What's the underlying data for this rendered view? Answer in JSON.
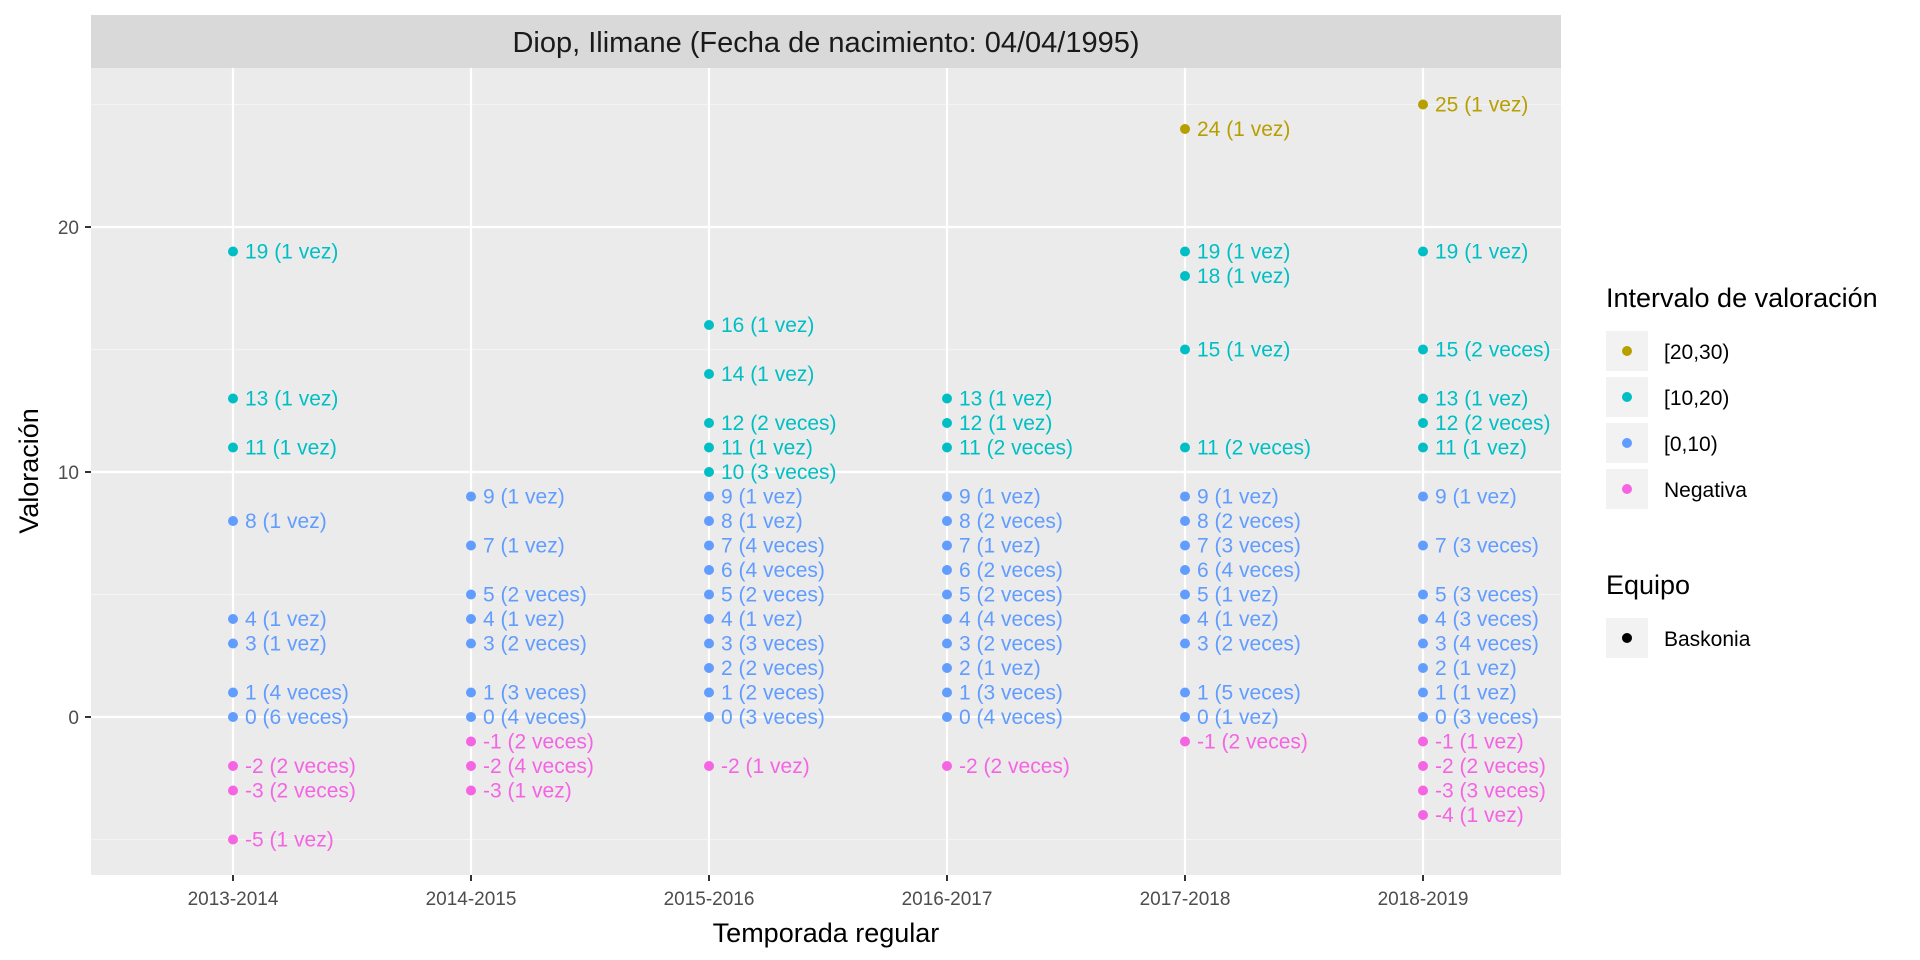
{
  "chart_data": {
    "type": "scatter",
    "title": "Diop, Ilimane (Fecha de nacimiento: 04/04/1995)",
    "xlabel": "Temporada regular",
    "ylabel": "Valoración",
    "categories": [
      "2013-2014",
      "2014-2015",
      "2015-2016",
      "2016-2017",
      "2017-2018",
      "2018-2019"
    ],
    "ylim": [
      -6.5,
      26.5
    ],
    "yticks": [
      0,
      10,
      20
    ],
    "grid": true,
    "legend_position": "right",
    "legend": {
      "color_title": "Intervalo de valoración",
      "color_entries": [
        {
          "key": "20_30",
          "label": "[20,30)",
          "color": "#B79F00"
        },
        {
          "key": "10_20",
          "label": "[10,20)",
          "color": "#00BFC4"
        },
        {
          "key": "0_10",
          "label": "[0,10)",
          "color": "#619CFF"
        },
        {
          "key": "neg",
          "label": "Negativa",
          "color": "#F564E3"
        }
      ],
      "shape_title": "Equipo",
      "shape_entries": [
        {
          "label": "Baskonia",
          "color": "#000000"
        }
      ]
    },
    "points": [
      {
        "season": "2013-2014",
        "y": 19,
        "group": "10_20",
        "label": "19 (1 vez)"
      },
      {
        "season": "2013-2014",
        "y": 13,
        "group": "10_20",
        "label": "13 (1 vez)"
      },
      {
        "season": "2013-2014",
        "y": 11,
        "group": "10_20",
        "label": "11 (1 vez)"
      },
      {
        "season": "2013-2014",
        "y": 8,
        "group": "0_10",
        "label": "8 (1 vez)"
      },
      {
        "season": "2013-2014",
        "y": 4,
        "group": "0_10",
        "label": "4 (1 vez)"
      },
      {
        "season": "2013-2014",
        "y": 3,
        "group": "0_10",
        "label": "3 (1 vez)"
      },
      {
        "season": "2013-2014",
        "y": 1,
        "group": "0_10",
        "label": "1 (4 veces)"
      },
      {
        "season": "2013-2014",
        "y": 0,
        "group": "0_10",
        "label": "0 (6 veces)"
      },
      {
        "season": "2013-2014",
        "y": -2,
        "group": "neg",
        "label": "-2 (2 veces)"
      },
      {
        "season": "2013-2014",
        "y": -3,
        "group": "neg",
        "label": "-3 (2 veces)"
      },
      {
        "season": "2013-2014",
        "y": -5,
        "group": "neg",
        "label": "-5 (1 vez)"
      },
      {
        "season": "2014-2015",
        "y": 9,
        "group": "0_10",
        "label": "9 (1 vez)"
      },
      {
        "season": "2014-2015",
        "y": 7,
        "group": "0_10",
        "label": "7 (1 vez)"
      },
      {
        "season": "2014-2015",
        "y": 5,
        "group": "0_10",
        "label": "5 (2 veces)"
      },
      {
        "season": "2014-2015",
        "y": 4,
        "group": "0_10",
        "label": "4 (1 vez)"
      },
      {
        "season": "2014-2015",
        "y": 3,
        "group": "0_10",
        "label": "3 (2 veces)"
      },
      {
        "season": "2014-2015",
        "y": 1,
        "group": "0_10",
        "label": "1 (3 veces)"
      },
      {
        "season": "2014-2015",
        "y": 0,
        "group": "0_10",
        "label": "0 (4 veces)"
      },
      {
        "season": "2014-2015",
        "y": -1,
        "group": "neg",
        "label": "-1 (2 veces)"
      },
      {
        "season": "2014-2015",
        "y": -2,
        "group": "neg",
        "label": "-2 (4 veces)"
      },
      {
        "season": "2014-2015",
        "y": -3,
        "group": "neg",
        "label": "-3 (1 vez)"
      },
      {
        "season": "2015-2016",
        "y": 16,
        "group": "10_20",
        "label": "16 (1 vez)"
      },
      {
        "season": "2015-2016",
        "y": 14,
        "group": "10_20",
        "label": "14 (1 vez)"
      },
      {
        "season": "2015-2016",
        "y": 12,
        "group": "10_20",
        "label": "12 (2 veces)"
      },
      {
        "season": "2015-2016",
        "y": 11,
        "group": "10_20",
        "label": "11 (1 vez)"
      },
      {
        "season": "2015-2016",
        "y": 10,
        "group": "10_20",
        "label": "10 (3 veces)"
      },
      {
        "season": "2015-2016",
        "y": 9,
        "group": "0_10",
        "label": "9 (1 vez)"
      },
      {
        "season": "2015-2016",
        "y": 8,
        "group": "0_10",
        "label": "8 (1 vez)"
      },
      {
        "season": "2015-2016",
        "y": 7,
        "group": "0_10",
        "label": "7 (4 veces)"
      },
      {
        "season": "2015-2016",
        "y": 6,
        "group": "0_10",
        "label": "6 (4 veces)"
      },
      {
        "season": "2015-2016",
        "y": 5,
        "group": "0_10",
        "label": "5 (2 veces)"
      },
      {
        "season": "2015-2016",
        "y": 4,
        "group": "0_10",
        "label": "4 (1 vez)"
      },
      {
        "season": "2015-2016",
        "y": 3,
        "group": "0_10",
        "label": "3 (3 veces)"
      },
      {
        "season": "2015-2016",
        "y": 2,
        "group": "0_10",
        "label": "2 (2 veces)"
      },
      {
        "season": "2015-2016",
        "y": 1,
        "group": "0_10",
        "label": "1 (2 veces)"
      },
      {
        "season": "2015-2016",
        "y": 0,
        "group": "0_10",
        "label": "0 (3 veces)"
      },
      {
        "season": "2015-2016",
        "y": -2,
        "group": "neg",
        "label": "-2 (1 vez)"
      },
      {
        "season": "2016-2017",
        "y": 13,
        "group": "10_20",
        "label": "13 (1 vez)"
      },
      {
        "season": "2016-2017",
        "y": 12,
        "group": "10_20",
        "label": "12 (1 vez)"
      },
      {
        "season": "2016-2017",
        "y": 11,
        "group": "10_20",
        "label": "11 (2 veces)"
      },
      {
        "season": "2016-2017",
        "y": 9,
        "group": "0_10",
        "label": "9 (1 vez)"
      },
      {
        "season": "2016-2017",
        "y": 8,
        "group": "0_10",
        "label": "8 (2 veces)"
      },
      {
        "season": "2016-2017",
        "y": 7,
        "group": "0_10",
        "label": "7 (1 vez)"
      },
      {
        "season": "2016-2017",
        "y": 6,
        "group": "0_10",
        "label": "6 (2 veces)"
      },
      {
        "season": "2016-2017",
        "y": 5,
        "group": "0_10",
        "label": "5 (2 veces)"
      },
      {
        "season": "2016-2017",
        "y": 4,
        "group": "0_10",
        "label": "4 (4 veces)"
      },
      {
        "season": "2016-2017",
        "y": 3,
        "group": "0_10",
        "label": "3 (2 veces)"
      },
      {
        "season": "2016-2017",
        "y": 2,
        "group": "0_10",
        "label": "2 (1 vez)"
      },
      {
        "season": "2016-2017",
        "y": 1,
        "group": "0_10",
        "label": "1 (3 veces)"
      },
      {
        "season": "2016-2017",
        "y": 0,
        "group": "0_10",
        "label": "0 (4 veces)"
      },
      {
        "season": "2016-2017",
        "y": -2,
        "group": "neg",
        "label": "-2 (2 veces)"
      },
      {
        "season": "2017-2018",
        "y": 24,
        "group": "20_30",
        "label": "24 (1 vez)"
      },
      {
        "season": "2017-2018",
        "y": 19,
        "group": "10_20",
        "label": "19 (1 vez)"
      },
      {
        "season": "2017-2018",
        "y": 18,
        "group": "10_20",
        "label": "18 (1 vez)"
      },
      {
        "season": "2017-2018",
        "y": 15,
        "group": "10_20",
        "label": "15 (1 vez)"
      },
      {
        "season": "2017-2018",
        "y": 11,
        "group": "10_20",
        "label": "11 (2 veces)"
      },
      {
        "season": "2017-2018",
        "y": 9,
        "group": "0_10",
        "label": "9 (1 vez)"
      },
      {
        "season": "2017-2018",
        "y": 8,
        "group": "0_10",
        "label": "8 (2 veces)"
      },
      {
        "season": "2017-2018",
        "y": 7,
        "group": "0_10",
        "label": "7 (3 veces)"
      },
      {
        "season": "2017-2018",
        "y": 6,
        "group": "0_10",
        "label": "6 (4 veces)"
      },
      {
        "season": "2017-2018",
        "y": 5,
        "group": "0_10",
        "label": "5 (1 vez)"
      },
      {
        "season": "2017-2018",
        "y": 4,
        "group": "0_10",
        "label": "4 (1 vez)"
      },
      {
        "season": "2017-2018",
        "y": 3,
        "group": "0_10",
        "label": "3 (2 veces)"
      },
      {
        "season": "2017-2018",
        "y": 1,
        "group": "0_10",
        "label": "1 (5 veces)"
      },
      {
        "season": "2017-2018",
        "y": 0,
        "group": "0_10",
        "label": "0 (1 vez)"
      },
      {
        "season": "2017-2018",
        "y": -1,
        "group": "neg",
        "label": "-1 (2 veces)"
      },
      {
        "season": "2018-2019",
        "y": 25,
        "group": "20_30",
        "label": "25 (1 vez)"
      },
      {
        "season": "2018-2019",
        "y": 19,
        "group": "10_20",
        "label": "19 (1 vez)"
      },
      {
        "season": "2018-2019",
        "y": 15,
        "group": "10_20",
        "label": "15 (2 veces)"
      },
      {
        "season": "2018-2019",
        "y": 13,
        "group": "10_20",
        "label": "13 (1 vez)"
      },
      {
        "season": "2018-2019",
        "y": 12,
        "group": "10_20",
        "label": "12 (2 veces)"
      },
      {
        "season": "2018-2019",
        "y": 11,
        "group": "10_20",
        "label": "11 (1 vez)"
      },
      {
        "season": "2018-2019",
        "y": 9,
        "group": "0_10",
        "label": "9 (1 vez)"
      },
      {
        "season": "2018-2019",
        "y": 7,
        "group": "0_10",
        "label": "7 (3 veces)"
      },
      {
        "season": "2018-2019",
        "y": 5,
        "group": "0_10",
        "label": "5 (3 veces)"
      },
      {
        "season": "2018-2019",
        "y": 4,
        "group": "0_10",
        "label": "4 (3 veces)"
      },
      {
        "season": "2018-2019",
        "y": 3,
        "group": "0_10",
        "label": "3 (4 veces)"
      },
      {
        "season": "2018-2019",
        "y": 2,
        "group": "0_10",
        "label": "2 (1 vez)"
      },
      {
        "season": "2018-2019",
        "y": 1,
        "group": "0_10",
        "label": "1 (1 vez)"
      },
      {
        "season": "2018-2019",
        "y": 0,
        "group": "0_10",
        "label": "0 (3 veces)"
      },
      {
        "season": "2018-2019",
        "y": -1,
        "group": "neg",
        "label": "-1 (1 vez)"
      },
      {
        "season": "2018-2019",
        "y": -2,
        "group": "neg",
        "label": "-2 (2 veces)"
      },
      {
        "season": "2018-2019",
        "y": -3,
        "group": "neg",
        "label": "-3 (3 veces)"
      },
      {
        "season": "2018-2019",
        "y": -4,
        "group": "neg",
        "label": "-4 (1 vez)"
      }
    ]
  }
}
